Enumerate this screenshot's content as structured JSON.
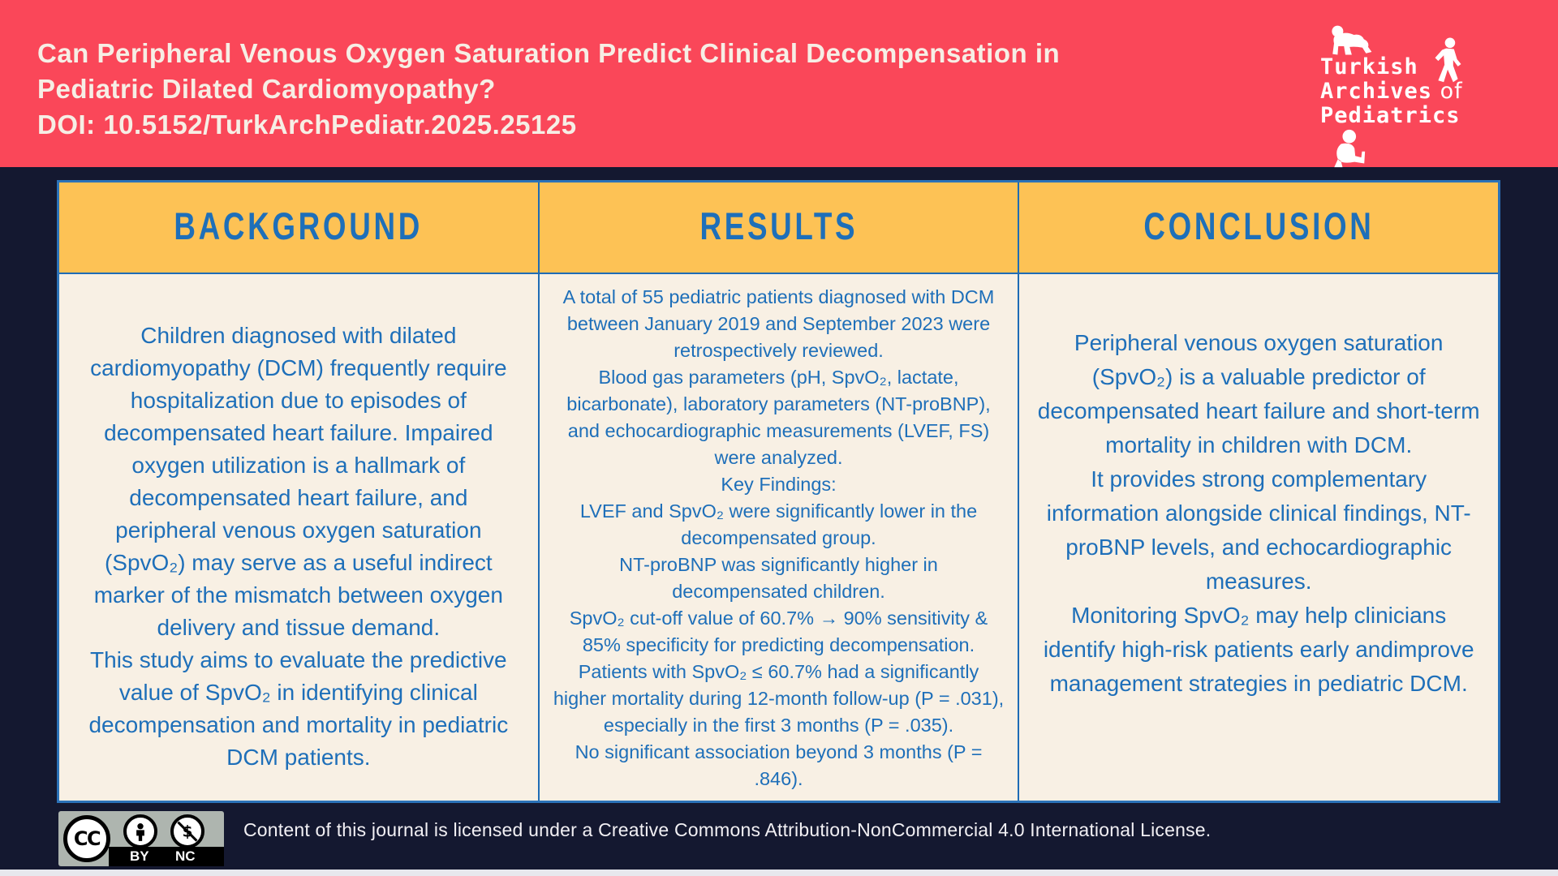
{
  "header": {
    "title": "Can Peripheral Venous Oxygen Saturation Predict Clinical Decompensation in\nPediatric Dilated Cardiomyopathy?",
    "doi": "DOI: 10.5152/TurkArchPediatr.2025.25125",
    "bg_color": "#FA4759",
    "logo": {
      "line1": "Turkish",
      "line2_word": "Archives",
      "line2_of": " of",
      "line3": "Pediatrics"
    }
  },
  "table": {
    "border_color": "#1F6CB5",
    "header_bg": "#FDC255",
    "body_bg": "#F8F0E4",
    "text_color": "#1E6FB9",
    "columns": [
      {
        "header": "BACKGROUND",
        "paragraphs": [
          "Children diagnosed with dilated cardiomyopathy (DCM) frequently require hospitalization due to episodes of decompensated heart failure. Impaired oxygen utilization is a hallmark of decompensated heart failure, and peripheral venous oxygen saturation (SpvO₂) may serve as a useful indirect marker of the mismatch between oxygen delivery and tissue demand.",
          "This study aims to evaluate the predictive value of SpvO₂ in identifying clinical decompensation and mortality in pediatric DCM patients."
        ]
      },
      {
        "header": "RESULTS",
        "paragraphs": [
          "A total of 55 pediatric patients diagnosed with DCM between January 2019 and September 2023 were retrospectively reviewed.",
          "Blood gas parameters (pH, SpvO₂, lactate, bicarbonate), laboratory parameters (NT-proBNP), and echocardiographic measurements (LVEF, FS) were analyzed.",
          "Key Findings:",
          "LVEF and SpvO₂ were significantly lower in the decompensated group.",
          "NT-proBNP was significantly higher in decompensated children.",
          "SpvO₂ cut-off value of 60.7% → 90% sensitivity & 85% specificity for predicting decompensation.",
          "Patients with SpvO₂ ≤ 60.7% had a significantly higher mortality during 12-month follow-up (P = .031), especially in the first 3 months (P = .035).",
          "No significant association beyond 3 months (P = .846)."
        ]
      },
      {
        "header": "CONCLUSION",
        "paragraphs": [
          "Peripheral venous oxygen saturation (SpvO₂) is a valuable predictor of decompensated heart failure and short-term mortality in children with DCM.",
          "It provides strong complementary information alongside clinical findings, NT-proBNP levels, and echocardiographic measures.",
          "Monitoring SpvO₂ may help clinicians identify high-risk patients early andimprove management strategies in pediatric DCM."
        ]
      }
    ]
  },
  "footer": {
    "cc_label": "CC",
    "by_label": "BY",
    "nc_label": "NC",
    "license_text": "Content of this journal is licensed under a Creative Commons Attribution-NonCommercial 4.0 International License."
  }
}
